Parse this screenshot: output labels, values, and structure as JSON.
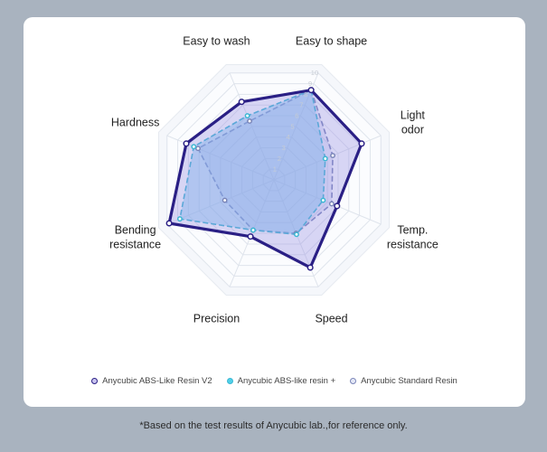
{
  "chart_data": {
    "type": "radar",
    "axes": [
      "Easy to shape",
      "Light\nodor",
      "Temp.\nresistance",
      "Speed",
      "Precision",
      "Bending\nresistance",
      "Hardness",
      "Easy to wash"
    ],
    "ticks": [
      "1",
      "2",
      "3",
      "4",
      "5",
      "6",
      "7",
      "8",
      "9",
      "10"
    ],
    "range": [
      0,
      10
    ],
    "series": [
      {
        "name": "Anycubic ABS-Like Resin V2",
        "values": [
          8.4,
          8.2,
          5.9,
          8.2,
          5.3,
          9.8,
          8.2,
          7.3
        ],
        "color": "#2a1f85",
        "fill": "rgba(150,140,225,0.35)",
        "dash": false,
        "width": 3.2
      },
      {
        "name": "Anycubic ABS-like resin +",
        "values": [
          8.4,
          4.8,
          4.6,
          5.1,
          4.7,
          8.8,
          7.5,
          6.0
        ],
        "color": "#3cb7d3",
        "fill": "rgba(120,200,240,0.45)",
        "dash": true,
        "width": 1.6
      },
      {
        "name": "Anycubic Standard Resin",
        "values": [
          8.4,
          5.5,
          5.4,
          5.0,
          4.7,
          4.6,
          7.1,
          5.5
        ],
        "color": "#7a85b8",
        "fill": "rgba(150,160,220,0.2)",
        "dash": true,
        "width": 1.6
      }
    ],
    "grid": true,
    "legend_position": "bottom"
  },
  "footnote": "*Based on the test results of Anycubic lab.,for reference only."
}
